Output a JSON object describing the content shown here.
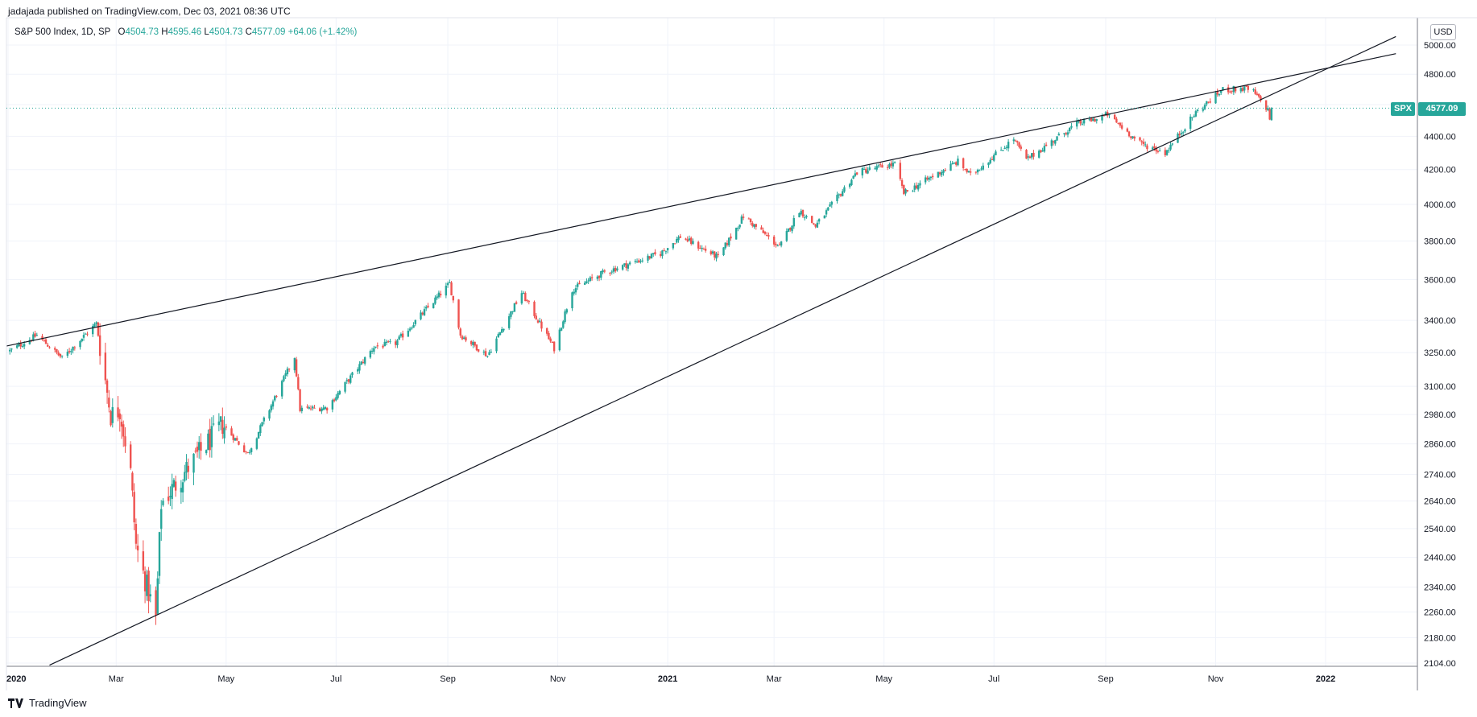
{
  "publisher": "jadajada published on TradingView.com, Dec 03, 2021 08:36 UTC",
  "legend": {
    "title": "S&P 500 Index, 1D, SP",
    "open_label": "O",
    "open": "4504.73",
    "high_label": "H",
    "high": "4595.46",
    "low_label": "L",
    "low": "4504.73",
    "close_label": "C",
    "close": "4577.09",
    "change": "+64.06 (+1.42%)"
  },
  "currency": "USD",
  "symbol_tag": "SPX",
  "price_tag": "4577.09",
  "footer_brand": "TradingView",
  "colors": {
    "up": "#26a69a",
    "down": "#ef5350",
    "grid": "#f0f3fa",
    "line": "#131722"
  },
  "chart_data": {
    "type": "candlestick",
    "scale": "log",
    "ylim": [
      2104,
      5000
    ],
    "y_ticks": [
      "5000.00",
      "4800.00",
      "4600.00",
      "4400.00",
      "4200.00",
      "4000.00",
      "3800.00",
      "3600.00",
      "3400.00",
      "3250.00",
      "3100.00",
      "2980.00",
      "2860.00",
      "2740.00",
      "2640.00",
      "2540.00",
      "2440.00",
      "2340.00",
      "2260.00",
      "2180.00",
      "2104.00"
    ],
    "x_ticks": [
      {
        "date": "2020-01-01",
        "label": "2020",
        "bold": true
      },
      {
        "date": "2020-03-01",
        "label": "Mar"
      },
      {
        "date": "2020-05-01",
        "label": "May"
      },
      {
        "date": "2020-07-01",
        "label": "Jul"
      },
      {
        "date": "2020-09-01",
        "label": "Sep"
      },
      {
        "date": "2020-11-01",
        "label": "Nov"
      },
      {
        "date": "2021-01-01",
        "label": "2021",
        "bold": true
      },
      {
        "date": "2021-03-01",
        "label": "Mar"
      },
      {
        "date": "2021-05-01",
        "label": "May"
      },
      {
        "date": "2021-07-01",
        "label": "Jul"
      },
      {
        "date": "2021-09-01",
        "label": "Sep"
      },
      {
        "date": "2021-11-01",
        "label": "Nov"
      },
      {
        "date": "2022-01-01",
        "label": "2022",
        "bold": true
      }
    ],
    "last_price": 4577.09,
    "close_path": [
      [
        "2020-01-02",
        3258
      ],
      [
        "2020-01-17",
        3330
      ],
      [
        "2020-01-31",
        3225
      ],
      [
        "2020-02-19",
        3386
      ],
      [
        "2020-02-27",
        2978
      ],
      [
        "2020-03-03",
        3003
      ],
      [
        "2020-03-09",
        2746
      ],
      [
        "2020-03-12",
        2480
      ],
      [
        "2020-03-16",
        2386
      ],
      [
        "2020-03-23",
        2237
      ],
      [
        "2020-03-26",
        2630
      ],
      [
        "2020-04-08",
        2750
      ],
      [
        "2020-04-29",
        2940
      ],
      [
        "2020-05-13",
        2820
      ],
      [
        "2020-06-08",
        3232
      ],
      [
        "2020-06-11",
        3002
      ],
      [
        "2020-06-26",
        3009
      ],
      [
        "2020-07-22",
        3276
      ],
      [
        "2020-08-03",
        3294
      ],
      [
        "2020-09-02",
        3580
      ],
      [
        "2020-09-08",
        3332
      ],
      [
        "2020-09-23",
        3237
      ],
      [
        "2020-10-12",
        3535
      ],
      [
        "2020-10-30",
        3270
      ],
      [
        "2020-11-09",
        3550
      ],
      [
        "2020-11-27",
        3638
      ],
      [
        "2020-12-28",
        3735
      ],
      [
        "2021-01-08",
        3824
      ],
      [
        "2021-01-29",
        3714
      ],
      [
        "2021-02-12",
        3934
      ],
      [
        "2021-03-04",
        3768
      ],
      [
        "2021-03-15",
        3968
      ],
      [
        "2021-03-24",
        3881
      ],
      [
        "2021-04-16",
        4185
      ],
      [
        "2021-05-07",
        4232
      ],
      [
        "2021-05-12",
        4063
      ],
      [
        "2021-06-11",
        4247
      ],
      [
        "2021-06-18",
        4166
      ],
      [
        "2021-07-12",
        4384
      ],
      [
        "2021-07-19",
        4258
      ],
      [
        "2021-08-16",
        4479
      ],
      [
        "2021-08-27",
        4509
      ],
      [
        "2021-09-02",
        4537
      ],
      [
        "2021-09-20",
        4358
      ],
      [
        "2021-10-04",
        4300
      ],
      [
        "2021-10-21",
        4549
      ],
      [
        "2021-11-05",
        4697
      ],
      [
        "2021-11-18",
        4704
      ],
      [
        "2021-11-22",
        4682
      ],
      [
        "2021-11-30",
        4567
      ],
      [
        "2021-12-01",
        4513
      ],
      [
        "2021-12-02",
        4577
      ]
    ],
    "trendlines": [
      {
        "name": "upper",
        "from": [
          "2019-12-31",
          3280
        ],
        "to": [
          "2022-02-09",
          4940
        ]
      },
      {
        "name": "lower",
        "from": [
          "2020-01-24",
          2098
        ],
        "to": [
          "2022-02-09",
          5060
        ]
      }
    ]
  }
}
